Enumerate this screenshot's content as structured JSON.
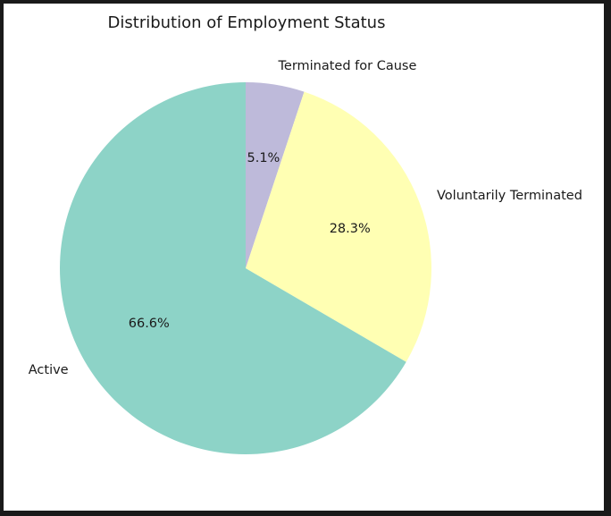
{
  "chart_data": {
    "type": "pie",
    "title": "Distribution of Employment Status",
    "slices": [
      {
        "label": "Terminated for Cause",
        "value": 5.1,
        "pct_label": "5.1%",
        "color": "#bebada"
      },
      {
        "label": "Voluntarily Terminated",
        "value": 28.3,
        "pct_label": "28.3%",
        "color": "#ffffb3"
      },
      {
        "label": "Active",
        "value": 66.6,
        "pct_label": "66.6%",
        "color": "#8dd3c7"
      }
    ],
    "start_angle": "90 degrees (top)",
    "direction": "clockwise",
    "legend": "none"
  }
}
